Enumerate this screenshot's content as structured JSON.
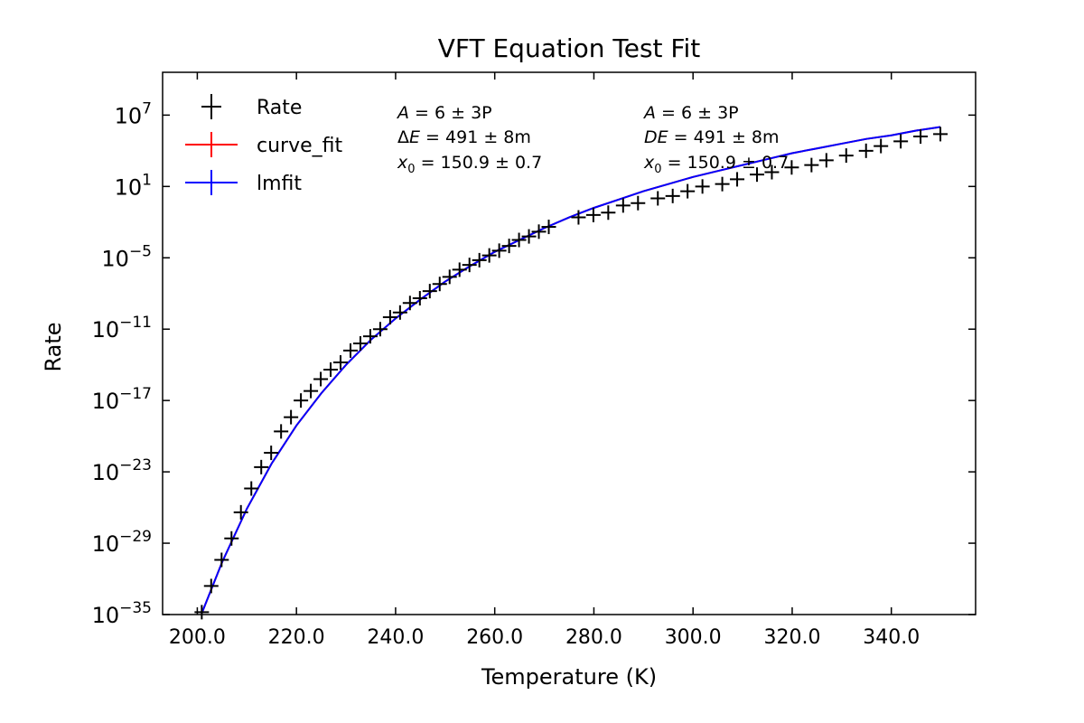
{
  "chart_data": {
    "type": "scatter",
    "title": "VFT Equation Test Fit",
    "xlabel": "Temperature (K)",
    "ylabel": "Rate",
    "xlim": [
      193,
      357
    ],
    "ylog_exponent_lim": [
      -35,
      10.6
    ],
    "xticks": [
      200,
      220,
      240,
      260,
      280,
      300,
      320,
      340
    ],
    "xtick_labels": [
      "200.0",
      "220.0",
      "240.0",
      "260.0",
      "280.0",
      "300.0",
      "320.0",
      "340.0"
    ],
    "yticks_exponents": [
      7,
      1,
      -5,
      -11,
      -17,
      -23,
      -29,
      -35
    ],
    "grid": false,
    "legend_position": "top-left",
    "legend": [
      {
        "label": "Rate",
        "color": "#000000"
      },
      {
        "label": "curve_fit",
        "color": "#ff0000"
      },
      {
        "label": "lmfit",
        "color": "#0000ff"
      }
    ],
    "annotations": {
      "curve_fit": {
        "A_value": "6",
        "A_err": "3P",
        "E_value": "491",
        "E_err": "8m",
        "x0_value": "150.9",
        "x0_err": "0.7"
      },
      "lmfit": {
        "A_value": "6",
        "A_err": "3P",
        "E_value": "491",
        "E_err": "8m",
        "x0_value": "150.9",
        "x0_err": "0.7"
      }
    },
    "fit_params": {
      "A": 6000000000000000.0,
      "E": 0.491,
      "x0": 150.9
    },
    "series": [
      {
        "name": "Rate",
        "marker": "+",
        "color": "#000000",
        "x": [
          200.9,
          202.8,
          204.9,
          206.9,
          208.8,
          210.9,
          212.9,
          214.9,
          216.9,
          218.9,
          220.9,
          222.9,
          224.9,
          226.9,
          228.9,
          230.9,
          232.9,
          234.9,
          236.9,
          238.9,
          240.9,
          242.9,
          244.9,
          246.9,
          248.9,
          250.9,
          252.9,
          254.9,
          256.9,
          258.9,
          260.9,
          262.9,
          264.9,
          266.9,
          268.9,
          270.9,
          276.9,
          279.9,
          282.9,
          285.9,
          288.9,
          292.9,
          295.9,
          298.9,
          301.9,
          305.9,
          308.9,
          312.9,
          315.9,
          319.9,
          323.9,
          326.9,
          330.9,
          334.9,
          337.9,
          341.9,
          345.9,
          349.9
        ],
        "y_exponent": [
          -34.8,
          -32.6,
          -30.4,
          -28.6,
          -26.4,
          -24.4,
          -22.6,
          -21.4,
          -19.6,
          -18.4,
          -17.0,
          -16.2,
          -15.2,
          -14.4,
          -13.8,
          -12.8,
          -12.2,
          -11.6,
          -11.0,
          -10.0,
          -9.6,
          -8.8,
          -8.4,
          -7.8,
          -7.2,
          -6.6,
          -6.0,
          -5.6,
          -5.2,
          -4.8,
          -4.4,
          -4.0,
          -3.5,
          -3.2,
          -2.8,
          -2.4,
          -1.6,
          -1.4,
          -1.2,
          -0.6,
          -0.4,
          0.0,
          0.2,
          0.6,
          1.0,
          1.2,
          1.6,
          2.0,
          2.2,
          2.6,
          2.8,
          3.2,
          3.6,
          4.0,
          4.4,
          4.8,
          5.2,
          5.4
        ]
      },
      {
        "name": "curve_fit",
        "type": "line",
        "color": "#ff0000",
        "x": [
          200.9,
          205,
          210,
          215,
          220,
          225,
          230,
          235,
          240,
          245,
          250,
          255,
          260,
          265,
          270,
          275,
          280,
          285,
          290,
          295,
          300,
          305,
          310,
          315,
          320,
          325,
          330,
          335,
          340,
          345,
          349.9
        ],
        "y_exponent": [
          -34.9,
          -30.6,
          -26.1,
          -22.3,
          -19.1,
          -16.4,
          -14.0,
          -11.9,
          -10.1,
          -8.5,
          -7.0,
          -5.7,
          -4.5,
          -3.5,
          -2.5,
          -1.6,
          -0.8,
          -0.1,
          0.6,
          1.2,
          1.8,
          2.3,
          2.8,
          3.3,
          3.8,
          4.2,
          4.6,
          5.0,
          5.3,
          5.7,
          6.0
        ]
      },
      {
        "name": "lmfit",
        "type": "line",
        "color": "#0000ff",
        "x": [
          200.9,
          205,
          210,
          215,
          220,
          225,
          230,
          235,
          240,
          245,
          250,
          255,
          260,
          265,
          270,
          275,
          280,
          285,
          290,
          295,
          300,
          305,
          310,
          315,
          320,
          325,
          330,
          335,
          340,
          345,
          349.9
        ],
        "y_exponent": [
          -34.9,
          -30.6,
          -26.1,
          -22.3,
          -19.1,
          -16.4,
          -14.0,
          -11.9,
          -10.1,
          -8.5,
          -7.0,
          -5.7,
          -4.5,
          -3.5,
          -2.5,
          -1.6,
          -0.8,
          -0.1,
          0.6,
          1.2,
          1.8,
          2.3,
          2.8,
          3.3,
          3.8,
          4.2,
          4.6,
          5.0,
          5.3,
          5.7,
          6.0
        ]
      }
    ]
  }
}
